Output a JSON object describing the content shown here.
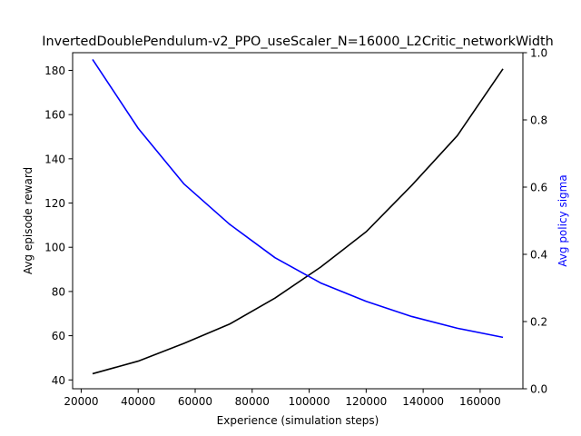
{
  "chart_data": {
    "type": "line",
    "title": "InvertedDoublePendulum-v2_PPO_useScaler_N=16000_L2Critic_networkWidth",
    "xlabel": "Experience (simulation steps)",
    "ylabel": "Avg episode reward",
    "y2label": "Avg policy sigma",
    "xlim": [
      17000,
      175000
    ],
    "ylim": [
      36,
      188
    ],
    "y2lim": [
      0,
      1
    ],
    "x_ticks": [
      20000,
      40000,
      60000,
      80000,
      100000,
      120000,
      140000,
      160000
    ],
    "y_ticks": [
      40,
      60,
      80,
      100,
      120,
      140,
      160,
      180
    ],
    "y2_ticks": [
      0.0,
      0.2,
      0.4,
      0.6,
      0.8,
      1.0
    ],
    "grid": false,
    "colors": {
      "reward": "#000000",
      "sigma": "#0000ff"
    },
    "series": [
      {
        "axis": "left",
        "x": [
          24000,
          40000,
          56000,
          72000,
          88000,
          104000,
          120000,
          136000,
          152000,
          168000
        ],
        "values": [
          42.8,
          48.5,
          56.5,
          65.2,
          77.0,
          91.0,
          107.0,
          128.0,
          150.5,
          180.7
        ]
      },
      {
        "axis": "right",
        "x": [
          24000,
          40000,
          56000,
          72000,
          88000,
          104000,
          120000,
          136000,
          152000,
          168000
        ],
        "values": [
          0.98,
          0.775,
          0.61,
          0.49,
          0.39,
          0.315,
          0.26,
          0.215,
          0.18,
          0.153
        ]
      }
    ]
  }
}
